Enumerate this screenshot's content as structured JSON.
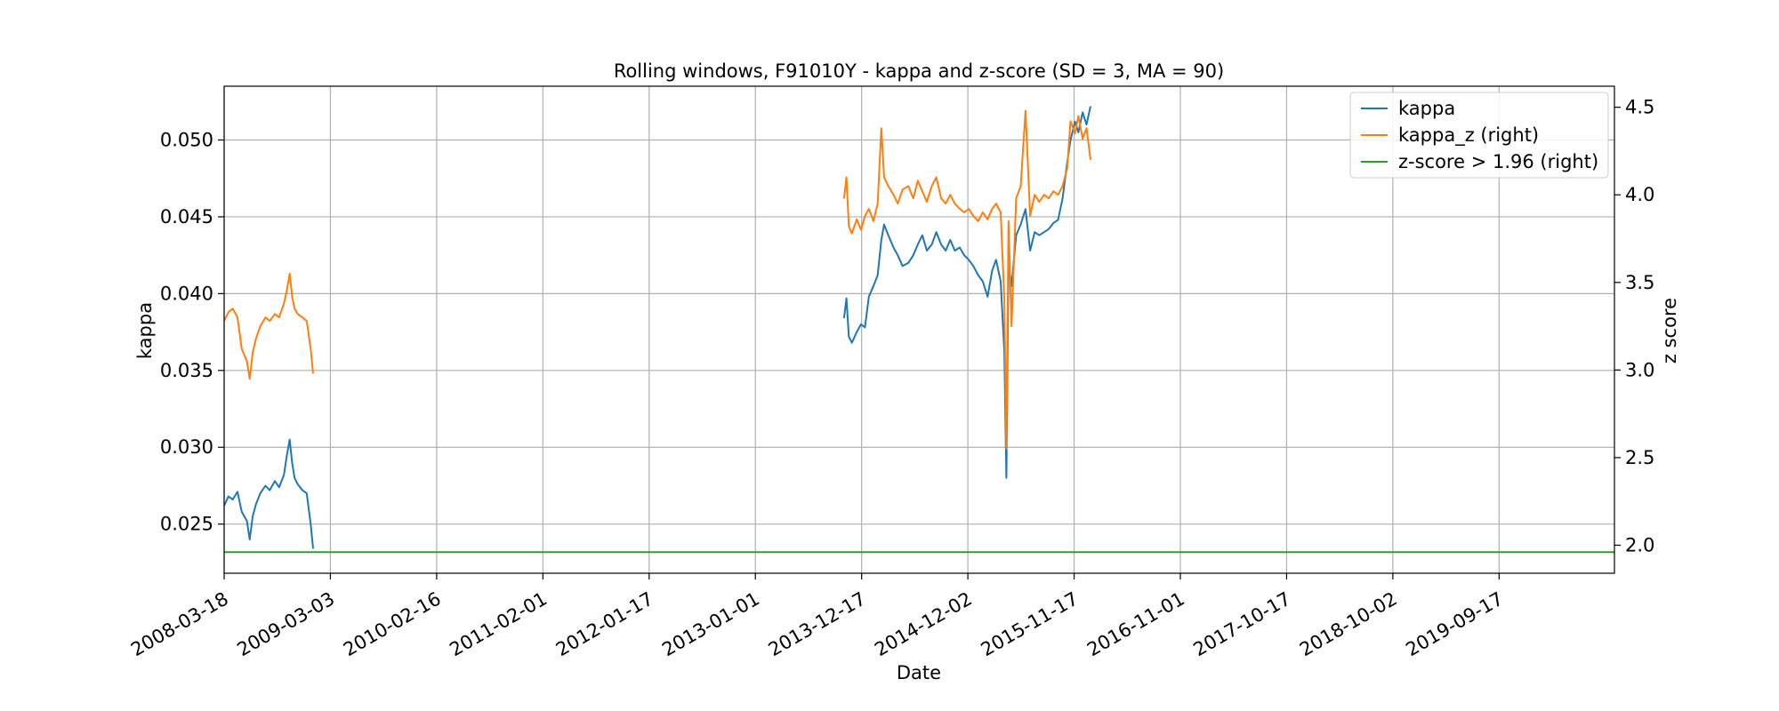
{
  "chart_data": {
    "type": "line",
    "title": "Rolling windows, F91010Y - kappa and z-score (SD = 3, MA = 90)",
    "xlabel": "Date",
    "ylabel_left": "kappa",
    "ylabel_right": "z score",
    "x_range": [
      "2008-03-18",
      "2020-10-01"
    ],
    "ylim_left": [
      0.0218,
      0.0535
    ],
    "ylim_right": [
      1.84,
      4.62
    ],
    "x_ticks": [
      "2008-03-18",
      "2009-03-03",
      "2010-02-16",
      "2011-02-01",
      "2012-01-17",
      "2013-01-01",
      "2013-12-17",
      "2014-12-02",
      "2015-11-17",
      "2016-11-01",
      "2017-10-17",
      "2018-10-02",
      "2019-09-17"
    ],
    "y_ticks_left": [
      "0.025",
      "0.030",
      "0.035",
      "0.040",
      "0.045",
      "0.050"
    ],
    "y_ticks_right": [
      "2.0",
      "2.5",
      "3.0",
      "3.5",
      "4.0",
      "4.5"
    ],
    "grid": true,
    "legend_position": "top-right",
    "colors": {
      "kappa": "#1f77b4",
      "kappa_z": "#ff7f0e",
      "threshold": "#2ca02c"
    },
    "series": [
      {
        "name": "kappa",
        "axis": "left",
        "segments": [
          [
            [
              "2008-03-18",
              0.0262
            ],
            [
              "2008-04-01",
              0.0268
            ],
            [
              "2008-04-15",
              0.0266
            ],
            [
              "2008-05-01",
              0.0271
            ],
            [
              "2008-05-15",
              0.0258
            ],
            [
              "2008-06-01",
              0.0252
            ],
            [
              "2008-06-10",
              0.024
            ],
            [
              "2008-06-20",
              0.0255
            ],
            [
              "2008-07-01",
              0.0263
            ],
            [
              "2008-07-15",
              0.027
            ],
            [
              "2008-08-01",
              0.0275
            ],
            [
              "2008-08-15",
              0.0272
            ],
            [
              "2008-09-01",
              0.0278
            ],
            [
              "2008-09-15",
              0.0274
            ],
            [
              "2008-10-01",
              0.0282
            ],
            [
              "2008-10-10",
              0.0294
            ],
            [
              "2008-10-20",
              0.0305
            ],
            [
              "2008-10-28",
              0.029
            ],
            [
              "2008-11-05",
              0.028
            ],
            [
              "2008-11-15",
              0.0276
            ],
            [
              "2008-12-01",
              0.0272
            ],
            [
              "2008-12-15",
              0.027
            ],
            [
              "2008-12-28",
              0.025
            ],
            [
              "2009-01-05",
              0.0234
            ]
          ],
          [
            [
              "2013-10-20",
              0.0384
            ],
            [
              "2013-10-28",
              0.0397
            ],
            [
              "2013-11-05",
              0.0372
            ],
            [
              "2013-11-15",
              0.0368
            ],
            [
              "2013-12-01",
              0.0375
            ],
            [
              "2013-12-15",
              0.038
            ],
            [
              "2013-12-28",
              0.0378
            ],
            [
              "2014-01-10",
              0.0398
            ],
            [
              "2014-01-25",
              0.0405
            ],
            [
              "2014-02-08",
              0.0412
            ],
            [
              "2014-02-20",
              0.0435
            ],
            [
              "2014-03-01",
              0.0445
            ],
            [
              "2014-03-15",
              0.0438
            ],
            [
              "2014-04-01",
              0.043
            ],
            [
              "2014-04-15",
              0.0425
            ],
            [
              "2014-05-01",
              0.0418
            ],
            [
              "2014-05-20",
              0.042
            ],
            [
              "2014-06-05",
              0.0425
            ],
            [
              "2014-06-20",
              0.0432
            ],
            [
              "2014-07-05",
              0.0438
            ],
            [
              "2014-07-20",
              0.0428
            ],
            [
              "2014-08-05",
              0.0432
            ],
            [
              "2014-08-20",
              0.044
            ],
            [
              "2014-09-05",
              0.0432
            ],
            [
              "2014-09-20",
              0.0428
            ],
            [
              "2014-10-05",
              0.0435
            ],
            [
              "2014-10-20",
              0.0428
            ],
            [
              "2014-11-05",
              0.043
            ],
            [
              "2014-11-20",
              0.0425
            ],
            [
              "2014-12-05",
              0.0422
            ],
            [
              "2014-12-20",
              0.0418
            ],
            [
              "2015-01-05",
              0.0412
            ],
            [
              "2015-01-20",
              0.0408
            ],
            [
              "2015-02-05",
              0.0398
            ],
            [
              "2015-02-20",
              0.0415
            ],
            [
              "2015-03-05",
              0.0422
            ],
            [
              "2015-03-20",
              0.0408
            ],
            [
              "2015-04-01",
              0.0362
            ],
            [
              "2015-04-08",
              0.028
            ],
            [
              "2015-04-15",
              0.042
            ],
            [
              "2015-04-25",
              0.0405
            ],
            [
              "2015-05-10",
              0.0438
            ],
            [
              "2015-05-25",
              0.0445
            ],
            [
              "2015-06-10",
              0.0455
            ],
            [
              "2015-06-25",
              0.0428
            ],
            [
              "2015-07-10",
              0.044
            ],
            [
              "2015-07-25",
              0.0438
            ],
            [
              "2015-08-10",
              0.044
            ],
            [
              "2015-08-25",
              0.0442
            ],
            [
              "2015-09-10",
              0.0446
            ],
            [
              "2015-09-25",
              0.0448
            ],
            [
              "2015-10-10",
              0.0462
            ],
            [
              "2015-10-25",
              0.0485
            ],
            [
              "2015-11-05",
              0.05
            ],
            [
              "2015-11-20",
              0.0512
            ],
            [
              "2015-12-01",
              0.0505
            ],
            [
              "2015-12-15",
              0.0518
            ],
            [
              "2015-12-28",
              0.051
            ],
            [
              "2016-01-10",
              0.0522
            ]
          ]
        ]
      },
      {
        "name": "kappa_z (right)",
        "axis": "right",
        "segments": [
          [
            [
              "2008-03-18",
              3.28
            ],
            [
              "2008-04-01",
              3.33
            ],
            [
              "2008-04-15",
              3.35
            ],
            [
              "2008-05-01",
              3.3
            ],
            [
              "2008-05-15",
              3.12
            ],
            [
              "2008-06-01",
              3.05
            ],
            [
              "2008-06-10",
              2.95
            ],
            [
              "2008-06-20",
              3.1
            ],
            [
              "2008-07-01",
              3.18
            ],
            [
              "2008-07-15",
              3.25
            ],
            [
              "2008-08-01",
              3.3
            ],
            [
              "2008-08-15",
              3.28
            ],
            [
              "2008-09-01",
              3.32
            ],
            [
              "2008-09-15",
              3.3
            ],
            [
              "2008-10-01",
              3.38
            ],
            [
              "2008-10-10",
              3.45
            ],
            [
              "2008-10-20",
              3.55
            ],
            [
              "2008-10-28",
              3.42
            ],
            [
              "2008-11-05",
              3.35
            ],
            [
              "2008-11-15",
              3.32
            ],
            [
              "2008-12-01",
              3.3
            ],
            [
              "2008-12-15",
              3.28
            ],
            [
              "2008-12-28",
              3.12
            ],
            [
              "2009-01-05",
              2.98
            ]
          ],
          [
            [
              "2013-10-20",
              3.98
            ],
            [
              "2013-10-28",
              4.1
            ],
            [
              "2013-11-05",
              3.82
            ],
            [
              "2013-11-15",
              3.78
            ],
            [
              "2013-12-01",
              3.86
            ],
            [
              "2013-12-15",
              3.8
            ],
            [
              "2013-12-28",
              3.88
            ],
            [
              "2014-01-10",
              3.92
            ],
            [
              "2014-01-25",
              3.85
            ],
            [
              "2014-02-08",
              3.95
            ],
            [
              "2014-02-20",
              4.38
            ],
            [
              "2014-03-01",
              4.1
            ],
            [
              "2014-03-15",
              4.05
            ],
            [
              "2014-04-01",
              4.0
            ],
            [
              "2014-04-15",
              3.95
            ],
            [
              "2014-05-01",
              4.03
            ],
            [
              "2014-05-20",
              4.05
            ],
            [
              "2014-06-05",
              3.98
            ],
            [
              "2014-06-20",
              4.08
            ],
            [
              "2014-07-05",
              4.02
            ],
            [
              "2014-07-20",
              3.96
            ],
            [
              "2014-08-05",
              4.05
            ],
            [
              "2014-08-20",
              4.1
            ],
            [
              "2014-09-05",
              3.98
            ],
            [
              "2014-09-20",
              3.95
            ],
            [
              "2014-10-05",
              4.0
            ],
            [
              "2014-10-20",
              3.95
            ],
            [
              "2014-11-05",
              3.92
            ],
            [
              "2014-11-20",
              3.9
            ],
            [
              "2014-12-05",
              3.92
            ],
            [
              "2014-12-20",
              3.88
            ],
            [
              "2015-01-05",
              3.85
            ],
            [
              "2015-01-20",
              3.9
            ],
            [
              "2015-02-05",
              3.86
            ],
            [
              "2015-02-20",
              3.92
            ],
            [
              "2015-03-05",
              3.95
            ],
            [
              "2015-03-20",
              3.9
            ],
            [
              "2015-04-01",
              3.4
            ],
            [
              "2015-04-08",
              2.55
            ],
            [
              "2015-04-15",
              3.85
            ],
            [
              "2015-04-25",
              3.25
            ],
            [
              "2015-05-10",
              3.98
            ],
            [
              "2015-05-25",
              4.05
            ],
            [
              "2015-06-10",
              4.48
            ],
            [
              "2015-06-25",
              3.88
            ],
            [
              "2015-07-10",
              4.0
            ],
            [
              "2015-07-25",
              3.96
            ],
            [
              "2015-08-10",
              4.0
            ],
            [
              "2015-08-25",
              3.98
            ],
            [
              "2015-09-10",
              4.02
            ],
            [
              "2015-09-25",
              4.0
            ],
            [
              "2015-10-10",
              4.05
            ],
            [
              "2015-10-25",
              4.15
            ],
            [
              "2015-11-05",
              4.42
            ],
            [
              "2015-11-20",
              4.35
            ],
            [
              "2015-12-01",
              4.45
            ],
            [
              "2015-12-15",
              4.32
            ],
            [
              "2015-12-28",
              4.38
            ],
            [
              "2016-01-10",
              4.2
            ]
          ]
        ]
      },
      {
        "name": "z-score > 1.96 (right)",
        "axis": "right",
        "segments": [
          [
            [
              "2008-03-18",
              1.96
            ],
            [
              "2020-10-01",
              1.96
            ]
          ]
        ]
      }
    ]
  }
}
